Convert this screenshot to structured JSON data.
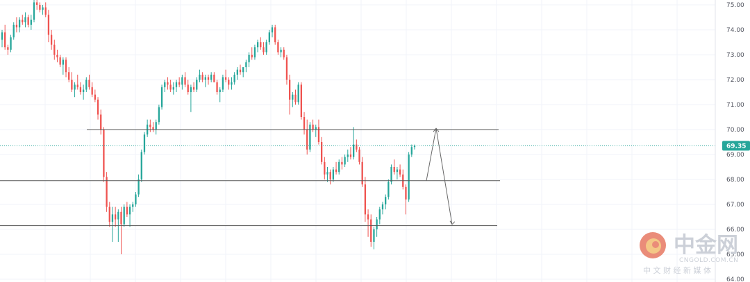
{
  "chart_data": {
    "type": "candlestick",
    "y_axis": {
      "ticks": [
        "75.00",
        "74.00",
        "73.00",
        "72.00",
        "71.00",
        "70.00",
        "69.00",
        "68.00",
        "67.00",
        "66.00",
        "65.00",
        "64.00"
      ],
      "ylim": [
        64.0,
        75.2
      ],
      "side": "right"
    },
    "current_price": {
      "label": "69.35",
      "value": 69.35
    },
    "horizontal_levels": [
      70.0,
      67.95,
      66.15
    ],
    "candles": [
      [
        73.6,
        74.0,
        73.3,
        73.9
      ],
      [
        73.9,
        74.2,
        73.2,
        73.3
      ],
      [
        73.3,
        73.4,
        73.0,
        73.2
      ],
      [
        73.2,
        73.8,
        73.1,
        73.7
      ],
      [
        73.7,
        74.3,
        73.6,
        74.2
      ],
      [
        74.2,
        74.5,
        73.9,
        74.1
      ],
      [
        74.1,
        74.5,
        73.9,
        74.4
      ],
      [
        74.4,
        74.6,
        74.2,
        74.3
      ],
      [
        74.3,
        74.7,
        74.1,
        74.5
      ],
      [
        74.5,
        74.6,
        74.1,
        74.2
      ],
      [
        74.2,
        74.6,
        74.0,
        74.4
      ],
      [
        74.4,
        75.2,
        74.3,
        75.1
      ],
      [
        75.1,
        75.3,
        74.8,
        75.0
      ],
      [
        75.0,
        75.1,
        74.7,
        74.8
      ],
      [
        74.8,
        75.0,
        74.6,
        74.9
      ],
      [
        74.9,
        75.1,
        74.5,
        74.6
      ],
      [
        74.6,
        74.8,
        73.5,
        73.8
      ],
      [
        73.8,
        74.0,
        73.2,
        73.4
      ],
      [
        73.4,
        73.6,
        72.8,
        73.0
      ],
      [
        73.0,
        73.2,
        72.7,
        72.9
      ],
      [
        72.9,
        73.0,
        72.5,
        72.6
      ],
      [
        72.6,
        72.9,
        72.2,
        72.8
      ],
      [
        72.8,
        72.9,
        72.1,
        72.3
      ],
      [
        72.3,
        72.5,
        71.9,
        72.0
      ],
      [
        72.0,
        72.3,
        71.5,
        71.6
      ],
      [
        71.6,
        71.9,
        71.3,
        71.8
      ],
      [
        71.8,
        72.2,
        71.6,
        71.7
      ],
      [
        71.7,
        71.9,
        71.4,
        71.5
      ],
      [
        71.5,
        71.8,
        71.2,
        71.6
      ],
      [
        71.6,
        72.1,
        71.5,
        72.0
      ],
      [
        72.0,
        72.2,
        71.6,
        71.7
      ],
      [
        71.7,
        71.9,
        71.3,
        71.4
      ],
      [
        71.4,
        71.6,
        71.1,
        71.2
      ],
      [
        71.2,
        71.3,
        70.4,
        70.6
      ],
      [
        70.6,
        70.8,
        69.8,
        70.0
      ],
      [
        70.0,
        70.1,
        67.9,
        68.1
      ],
      [
        68.1,
        68.3,
        66.7,
        66.9
      ],
      [
        66.9,
        67.1,
        66.1,
        66.3
      ],
      [
        66.3,
        66.9,
        65.5,
        66.6
      ],
      [
        66.6,
        66.9,
        66.1,
        66.4
      ],
      [
        66.4,
        66.8,
        65.5,
        66.7
      ],
      [
        66.7,
        66.9,
        65.0,
        66.2
      ],
      [
        66.2,
        67.0,
        66.1,
        66.9
      ],
      [
        66.9,
        67.1,
        66.5,
        66.6
      ],
      [
        66.6,
        67.0,
        66.1,
        66.9
      ],
      [
        66.9,
        67.1,
        66.7,
        67.0
      ],
      [
        67.0,
        67.5,
        66.9,
        67.4
      ],
      [
        67.4,
        68.2,
        67.3,
        68.0
      ],
      [
        68.0,
        69.2,
        67.9,
        69.1
      ],
      [
        69.1,
        69.9,
        69.0,
        69.8
      ],
      [
        69.8,
        70.4,
        69.7,
        70.2
      ],
      [
        70.2,
        70.4,
        69.9,
        70.1
      ],
      [
        70.1,
        70.3,
        69.9,
        70.0
      ],
      [
        70.0,
        70.4,
        69.8,
        70.3
      ],
      [
        70.3,
        71.0,
        70.2,
        70.9
      ],
      [
        70.9,
        71.8,
        70.8,
        71.7
      ],
      [
        71.7,
        72.0,
        71.5,
        71.9
      ],
      [
        71.9,
        72.1,
        71.6,
        71.8
      ],
      [
        71.8,
        72.0,
        71.5,
        71.6
      ],
      [
        71.6,
        71.9,
        71.4,
        71.7
      ],
      [
        71.7,
        72.0,
        71.5,
        71.9
      ],
      [
        71.9,
        72.1,
        71.7,
        71.8
      ],
      [
        71.8,
        72.2,
        71.6,
        72.1
      ],
      [
        72.1,
        72.3,
        71.7,
        71.8
      ],
      [
        71.8,
        72.0,
        71.4,
        71.5
      ],
      [
        71.5,
        71.8,
        70.7,
        71.7
      ],
      [
        71.7,
        71.9,
        71.5,
        71.6
      ],
      [
        71.6,
        72.1,
        71.5,
        72.0
      ],
      [
        72.0,
        72.4,
        71.9,
        72.2
      ],
      [
        72.2,
        72.3,
        71.9,
        72.0
      ],
      [
        72.0,
        72.2,
        71.7,
        72.1
      ],
      [
        72.1,
        72.2,
        71.8,
        72.0
      ],
      [
        72.0,
        72.3,
        71.9,
        72.2
      ],
      [
        72.2,
        72.3,
        71.9,
        71.9
      ],
      [
        71.9,
        72.0,
        71.4,
        71.5
      ],
      [
        71.5,
        71.7,
        71.1,
        71.6
      ],
      [
        71.6,
        72.2,
        71.5,
        72.1
      ],
      [
        72.1,
        72.4,
        71.9,
        72.0
      ],
      [
        72.0,
        72.1,
        71.6,
        71.8
      ],
      [
        71.8,
        72.1,
        71.6,
        71.9
      ],
      [
        71.9,
        72.3,
        71.8,
        72.2
      ],
      [
        72.2,
        72.5,
        72.0,
        72.4
      ],
      [
        72.4,
        72.6,
        72.2,
        72.3
      ],
      [
        72.3,
        72.5,
        72.1,
        72.5
      ],
      [
        72.5,
        72.8,
        72.3,
        72.7
      ],
      [
        72.7,
        73.1,
        72.5,
        73.0
      ],
      [
        73.0,
        73.3,
        72.8,
        72.9
      ],
      [
        72.9,
        73.4,
        72.8,
        73.3
      ],
      [
        73.3,
        73.6,
        73.1,
        73.5
      ],
      [
        73.5,
        73.7,
        73.2,
        73.3
      ],
      [
        73.3,
        73.5,
        73.0,
        73.1
      ],
      [
        73.1,
        73.6,
        73.0,
        73.5
      ],
      [
        73.5,
        74.0,
        73.4,
        73.9
      ],
      [
        73.9,
        74.2,
        73.7,
        74.1
      ],
      [
        74.1,
        74.2,
        73.4,
        73.5
      ],
      [
        73.5,
        73.6,
        73.0,
        73.1
      ],
      [
        73.1,
        73.3,
        72.9,
        73.2
      ],
      [
        73.2,
        73.3,
        72.8,
        72.9
      ],
      [
        72.9,
        73.0,
        71.8,
        72.0
      ],
      [
        72.0,
        72.2,
        70.6,
        71.2
      ],
      [
        71.2,
        71.5,
        70.9,
        71.4
      ],
      [
        71.4,
        71.6,
        71.0,
        71.1
      ],
      [
        71.1,
        71.9,
        71.0,
        71.8
      ],
      [
        71.8,
        71.9,
        70.4,
        70.5
      ],
      [
        70.5,
        70.7,
        69.8,
        70.0
      ],
      [
        70.0,
        70.4,
        69.0,
        69.2
      ],
      [
        69.2,
        70.3,
        69.1,
        70.2
      ],
      [
        70.2,
        70.4,
        69.9,
        70.0
      ],
      [
        70.0,
        70.2,
        69.7,
        70.1
      ],
      [
        70.1,
        70.4,
        69.4,
        69.5
      ],
      [
        69.5,
        69.7,
        68.6,
        68.7
      ],
      [
        68.7,
        68.9,
        68.0,
        68.2
      ],
      [
        68.2,
        68.5,
        67.9,
        68.3
      ],
      [
        68.3,
        68.4,
        67.8,
        68.0
      ],
      [
        68.0,
        68.5,
        67.9,
        68.4
      ],
      [
        68.4,
        68.7,
        68.2,
        68.3
      ],
      [
        68.3,
        68.8,
        68.2,
        68.7
      ],
      [
        68.7,
        68.9,
        68.4,
        68.6
      ],
      [
        68.6,
        69.0,
        68.5,
        68.9
      ],
      [
        68.9,
        69.2,
        68.7,
        69.0
      ],
      [
        69.0,
        69.3,
        68.8,
        68.9
      ],
      [
        68.9,
        70.1,
        68.8,
        69.4
      ],
      [
        69.4,
        69.6,
        69.1,
        69.2
      ],
      [
        69.2,
        69.3,
        68.6,
        68.7
      ],
      [
        68.7,
        68.9,
        67.7,
        67.8
      ],
      [
        67.8,
        68.1,
        66.3,
        66.6
      ],
      [
        66.6,
        66.8,
        65.7,
        66.4
      ],
      [
        66.4,
        66.6,
        65.3,
        65.5
      ],
      [
        65.5,
        66.1,
        65.2,
        66.0
      ],
      [
        66.0,
        66.5,
        65.7,
        66.4
      ],
      [
        66.4,
        66.9,
        66.2,
        66.8
      ],
      [
        66.8,
        67.1,
        66.6,
        67.0
      ],
      [
        67.0,
        67.4,
        66.8,
        67.3
      ],
      [
        67.3,
        68.0,
        67.2,
        67.9
      ],
      [
        67.9,
        68.6,
        67.8,
        68.5
      ],
      [
        68.5,
        68.8,
        68.2,
        68.3
      ],
      [
        68.3,
        68.5,
        68.0,
        68.4
      ],
      [
        68.4,
        68.6,
        68.1,
        68.2
      ],
      [
        68.2,
        68.4,
        67.6,
        67.7
      ],
      [
        67.7,
        67.8,
        66.6,
        67.2
      ],
      [
        67.2,
        69.1,
        67.1,
        69.0
      ],
      [
        69.0,
        69.4,
        68.9,
        69.3
      ],
      [
        69.3,
        69.4,
        69.2,
        69.35
      ]
    ]
  },
  "watermark": {
    "main": "中金网",
    "sub": "CNGOLD.COM.CN",
    "cn": "中 文 财 经 新 媒 体"
  },
  "colors": {
    "up": "#26a69a",
    "down": "#ef5350",
    "grid": "#f0f3fa",
    "level_line": "#555555",
    "price_tag": "#26a69a",
    "watermark_red": "#e8806b",
    "watermark_gold": "#f3c27a"
  }
}
